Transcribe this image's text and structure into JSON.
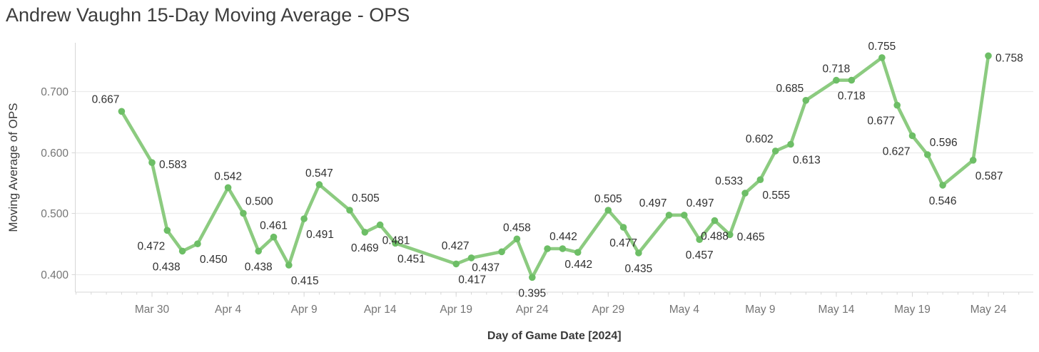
{
  "title": "Andrew Vaughn 15-Day Moving Average - OPS",
  "chart_data": {
    "type": "line",
    "title": "Andrew Vaughn 15-Day Moving Average - OPS",
    "xlabel": "Day of Game Date [2024]",
    "ylabel": "Moving Average of OPS",
    "legend": "none",
    "grid": "horizontal",
    "ylim": [
      0.368,
      0.782
    ],
    "x_domain_days": [
      -3.2,
      59.9
    ],
    "y_ticks": [
      {
        "label": "0.400",
        "value": 0.4
      },
      {
        "label": "0.500",
        "value": 0.5
      },
      {
        "label": "0.600",
        "value": 0.6
      },
      {
        "label": "0.700",
        "value": 0.7
      }
    ],
    "x_ticks": [
      {
        "label": "Mar 30",
        "day": 2
      },
      {
        "label": "Apr 4",
        "day": 7
      },
      {
        "label": "Apr 9",
        "day": 12
      },
      {
        "label": "Apr 14",
        "day": 17
      },
      {
        "label": "Apr 19",
        "day": 22
      },
      {
        "label": "Apr 24",
        "day": 27
      },
      {
        "label": "Apr 29",
        "day": 32
      },
      {
        "label": "May 4",
        "day": 37
      },
      {
        "label": "May 9",
        "day": 42
      },
      {
        "label": "May 14",
        "day": 47
      },
      {
        "label": "May 19",
        "day": 52
      },
      {
        "label": "May 24",
        "day": 57
      }
    ],
    "points": [
      {
        "date": "Mar 28",
        "day": 0,
        "value": 0.667,
        "label": "0.667",
        "label_pos": "above-left"
      },
      {
        "date": "Mar 30",
        "day": 2,
        "value": 0.583,
        "label": "0.583",
        "label_pos": "right"
      },
      {
        "date": "Mar 31",
        "day": 3,
        "value": 0.472,
        "label": "0.472",
        "label_pos": "below-left"
      },
      {
        "date": "Apr 1",
        "day": 4,
        "value": 0.438,
        "label": "0.438",
        "label_pos": "below-left"
      },
      {
        "date": "Apr 2",
        "day": 5,
        "value": 0.45,
        "label": "0.450",
        "label_pos": "below-right"
      },
      {
        "date": "Apr 4",
        "day": 7,
        "value": 0.542,
        "label": "0.542",
        "label_pos": "above"
      },
      {
        "date": "Apr 5",
        "day": 8,
        "value": 0.5,
        "label": "0.500",
        "label_pos": "above-right"
      },
      {
        "date": "Apr 6",
        "day": 9,
        "value": 0.438,
        "label": "0.438",
        "label_pos": "below"
      },
      {
        "date": "Apr 7",
        "day": 10,
        "value": 0.461,
        "label": "0.461",
        "label_pos": "above"
      },
      {
        "date": "Apr 8",
        "day": 11,
        "value": 0.415,
        "label": "0.415",
        "label_pos": "below-right"
      },
      {
        "date": "Apr 9",
        "day": 12,
        "value": 0.491,
        "label": "0.491",
        "label_pos": "below-right"
      },
      {
        "date": "Apr 10",
        "day": 13,
        "value": 0.547,
        "label": "0.547",
        "label_pos": "above"
      },
      {
        "date": "Apr 12",
        "day": 15,
        "value": 0.505,
        "label": "0.505",
        "label_pos": "above-right"
      },
      {
        "date": "Apr 13",
        "day": 16,
        "value": 0.469,
        "label": "0.469",
        "label_pos": "below"
      },
      {
        "date": "Apr 14",
        "day": 17,
        "value": 0.481,
        "label": "0.481",
        "label_pos": "below-right"
      },
      {
        "date": "Apr 15",
        "day": 18,
        "value": 0.451,
        "label": "0.451",
        "label_pos": "below-right"
      },
      {
        "date": "Apr 19",
        "day": 22,
        "value": 0.417,
        "label": "0.417",
        "label_pos": "below-right"
      },
      {
        "date": "Apr 20",
        "day": 23,
        "value": 0.427,
        "label": "0.427",
        "label_pos": "above-left"
      },
      {
        "date": "Apr 22",
        "day": 25,
        "value": 0.437,
        "label": "0.437",
        "label_pos": "below-left"
      },
      {
        "date": "Apr 23",
        "day": 26,
        "value": 0.458,
        "label": "0.458",
        "label_pos": "above"
      },
      {
        "date": "Apr 24",
        "day": 27,
        "value": 0.395,
        "label": "0.395",
        "label_pos": "below"
      },
      {
        "date": "Apr 25",
        "day": 28,
        "value": 0.442,
        "label": "0.442",
        "label_pos": "above-right"
      },
      {
        "date": "Apr 26",
        "day": 29,
        "value": 0.442,
        "label": "0.442",
        "label_pos": "below-right"
      },
      {
        "date": "Apr 27",
        "day": 30,
        "value": 0.436,
        "label": "",
        "label_pos": "none"
      },
      {
        "date": "Apr 29",
        "day": 32,
        "value": 0.505,
        "label": "0.505",
        "label_pos": "above"
      },
      {
        "date": "Apr 30",
        "day": 33,
        "value": 0.477,
        "label": "0.477",
        "label_pos": "below"
      },
      {
        "date": "May 1",
        "day": 34,
        "value": 0.435,
        "label": "0.435",
        "label_pos": "below"
      },
      {
        "date": "May 3",
        "day": 36,
        "value": 0.497,
        "label": "0.497",
        "label_pos": "above-left"
      },
      {
        "date": "May 4",
        "day": 37,
        "value": 0.497,
        "label": "0.497",
        "label_pos": "above-right"
      },
      {
        "date": "May 5",
        "day": 38,
        "value": 0.457,
        "label": "0.457",
        "label_pos": "below"
      },
      {
        "date": "May 6",
        "day": 39,
        "value": 0.488,
        "label": "0.488",
        "label_pos": "below"
      },
      {
        "date": "May 7",
        "day": 40,
        "value": 0.465,
        "label": "0.465",
        "label_pos": "right"
      },
      {
        "date": "May 8",
        "day": 41,
        "value": 0.533,
        "label": "0.533",
        "label_pos": "above-left"
      },
      {
        "date": "May 9",
        "day": 42,
        "value": 0.555,
        "label": "0.555",
        "label_pos": "below-right"
      },
      {
        "date": "May 10",
        "day": 43,
        "value": 0.602,
        "label": "0.602",
        "label_pos": "above-left"
      },
      {
        "date": "May 11",
        "day": 44,
        "value": 0.613,
        "label": "0.613",
        "label_pos": "below-right"
      },
      {
        "date": "May 12",
        "day": 45,
        "value": 0.685,
        "label": "0.685",
        "label_pos": "above-left"
      },
      {
        "date": "May 14",
        "day": 47,
        "value": 0.718,
        "label": "0.718",
        "label_pos": "above"
      },
      {
        "date": "May 15",
        "day": 48,
        "value": 0.718,
        "label": "0.718",
        "label_pos": "below"
      },
      {
        "date": "May 17",
        "day": 50,
        "value": 0.755,
        "label": "0.755",
        "label_pos": "above"
      },
      {
        "date": "May 18",
        "day": 51,
        "value": 0.677,
        "label": "0.677",
        "label_pos": "below-left"
      },
      {
        "date": "May 19",
        "day": 52,
        "value": 0.627,
        "label": "0.627",
        "label_pos": "below-left"
      },
      {
        "date": "May 20",
        "day": 53,
        "value": 0.596,
        "label": "0.596",
        "label_pos": "above-right"
      },
      {
        "date": "May 21",
        "day": 54,
        "value": 0.546,
        "label": "0.546",
        "label_pos": "below"
      },
      {
        "date": "May 23",
        "day": 56,
        "value": 0.587,
        "label": "0.587",
        "label_pos": "below-right"
      },
      {
        "date": "May 24",
        "day": 57,
        "value": 0.758,
        "label": "0.758",
        "label_pos": "right"
      }
    ],
    "colors": {
      "line": "#8ccb80",
      "marker": "#6dbe66",
      "data_label": "#303030",
      "axis_text": "#757575",
      "axis_title": "#3a3a3a",
      "grid_line": "#ececec",
      "axis_line": "#d7d7d7",
      "background": "#ffffff",
      "title_text": "#3d3d3d"
    }
  }
}
